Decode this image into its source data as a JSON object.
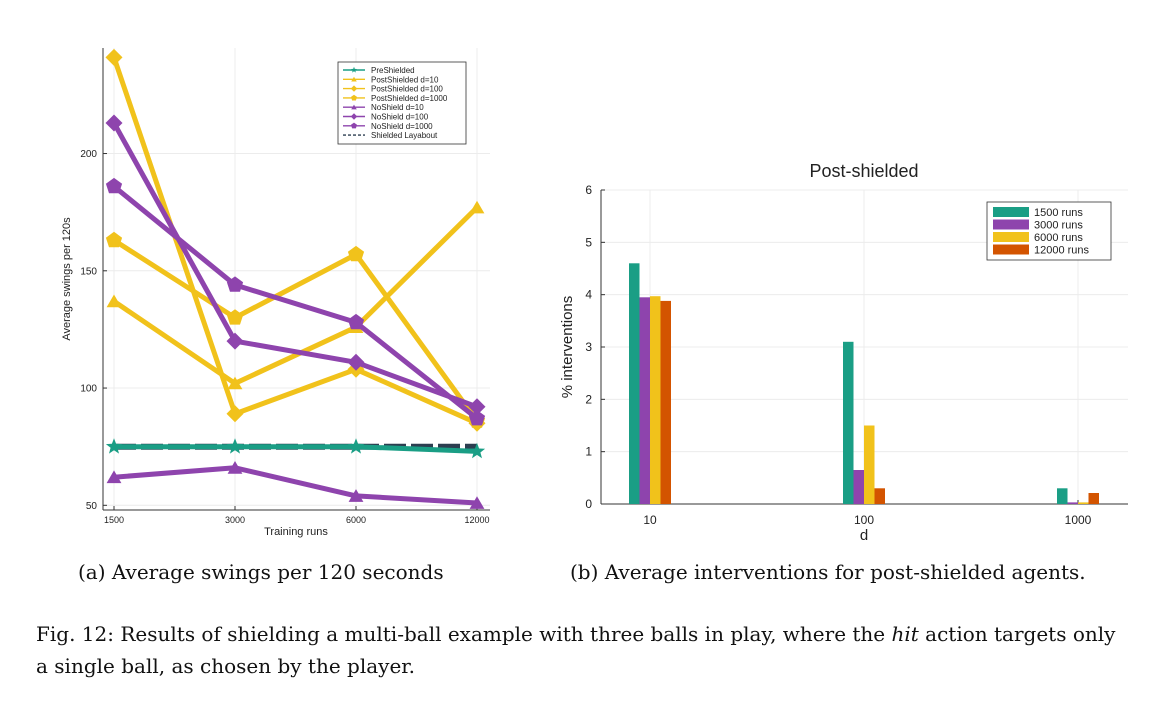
{
  "figure": {
    "caption_prefix": "Fig. 12:",
    "caption_before": " Results of shielding a multi-ball example with three balls in play, where the ",
    "caption_italic": "hit",
    "caption_after": " action targets only a single ball, as chosen by the player."
  },
  "panels": {
    "a_caption": "(a) Average swings per 120 seconds",
    "b_caption": "(b) Average interventions for post-shielded agents."
  },
  "colors": {
    "teal": "#1a9e85",
    "purple": "#8e44ad",
    "yellow": "#f1c21b",
    "orange": "#d35400",
    "dark": "#2c3e50"
  },
  "chart_data": [
    {
      "type": "line",
      "title": "",
      "xlabel": "Training runs",
      "ylabel": "Average swings per 120s",
      "categories": [
        "1500",
        "3000",
        "6000",
        "12000"
      ],
      "yticks": [
        50,
        100,
        150,
        200
      ],
      "ylim": [
        48,
        245
      ],
      "grid": true,
      "legend_position": "top-right",
      "series": [
        {
          "name": "PreShielded",
          "values": [
            75,
            75,
            75,
            73
          ],
          "color": "#1a9e85",
          "marker": "star"
        },
        {
          "name": "PostShielded d=10",
          "values": [
            137,
            102,
            126,
            177
          ],
          "color": "#f1c21b",
          "marker": "triangle"
        },
        {
          "name": "PostShielded d=100",
          "values": [
            241,
            89,
            108,
            85
          ],
          "color": "#f1c21b",
          "marker": "diamond"
        },
        {
          "name": "PostShielded d=1000",
          "values": [
            163,
            130,
            157,
            86
          ],
          "color": "#f1c21b",
          "marker": "pentagon"
        },
        {
          "name": "NoShield d=10",
          "values": [
            62,
            66,
            54,
            51
          ],
          "color": "#8e44ad",
          "marker": "triangle"
        },
        {
          "name": "NoShield d=100",
          "values": [
            213,
            120,
            111,
            92
          ],
          "color": "#8e44ad",
          "marker": "diamond"
        },
        {
          "name": "NoShield d=1000",
          "values": [
            186,
            144,
            128,
            87
          ],
          "color": "#8e44ad",
          "marker": "pentagon"
        },
        {
          "name": "Shielded Layabout",
          "values": [
            75,
            75,
            75,
            75
          ],
          "color": "#2c3e50",
          "marker": "none",
          "dashed": true
        }
      ]
    },
    {
      "type": "bar",
      "title": "Post-shielded",
      "xlabel": "d",
      "ylabel": "% interventions",
      "categories": [
        "10",
        "100",
        "1000"
      ],
      "yticks": [
        0,
        1,
        2,
        3,
        4,
        5,
        6
      ],
      "ylim": [
        0,
        6
      ],
      "grid": true,
      "legend_position": "top-right",
      "series": [
        {
          "name": "1500 runs",
          "values": [
            4.6,
            3.1,
            0.3
          ],
          "color": "#1a9e85"
        },
        {
          "name": "3000 runs",
          "values": [
            3.95,
            0.65,
            0.03
          ],
          "color": "#8e44ad"
        },
        {
          "name": "6000 runs",
          "values": [
            3.97,
            1.5,
            0.03
          ],
          "color": "#f1c21b"
        },
        {
          "name": "12000 runs",
          "values": [
            3.88,
            0.3,
            0.21
          ],
          "color": "#d35400"
        }
      ]
    }
  ]
}
